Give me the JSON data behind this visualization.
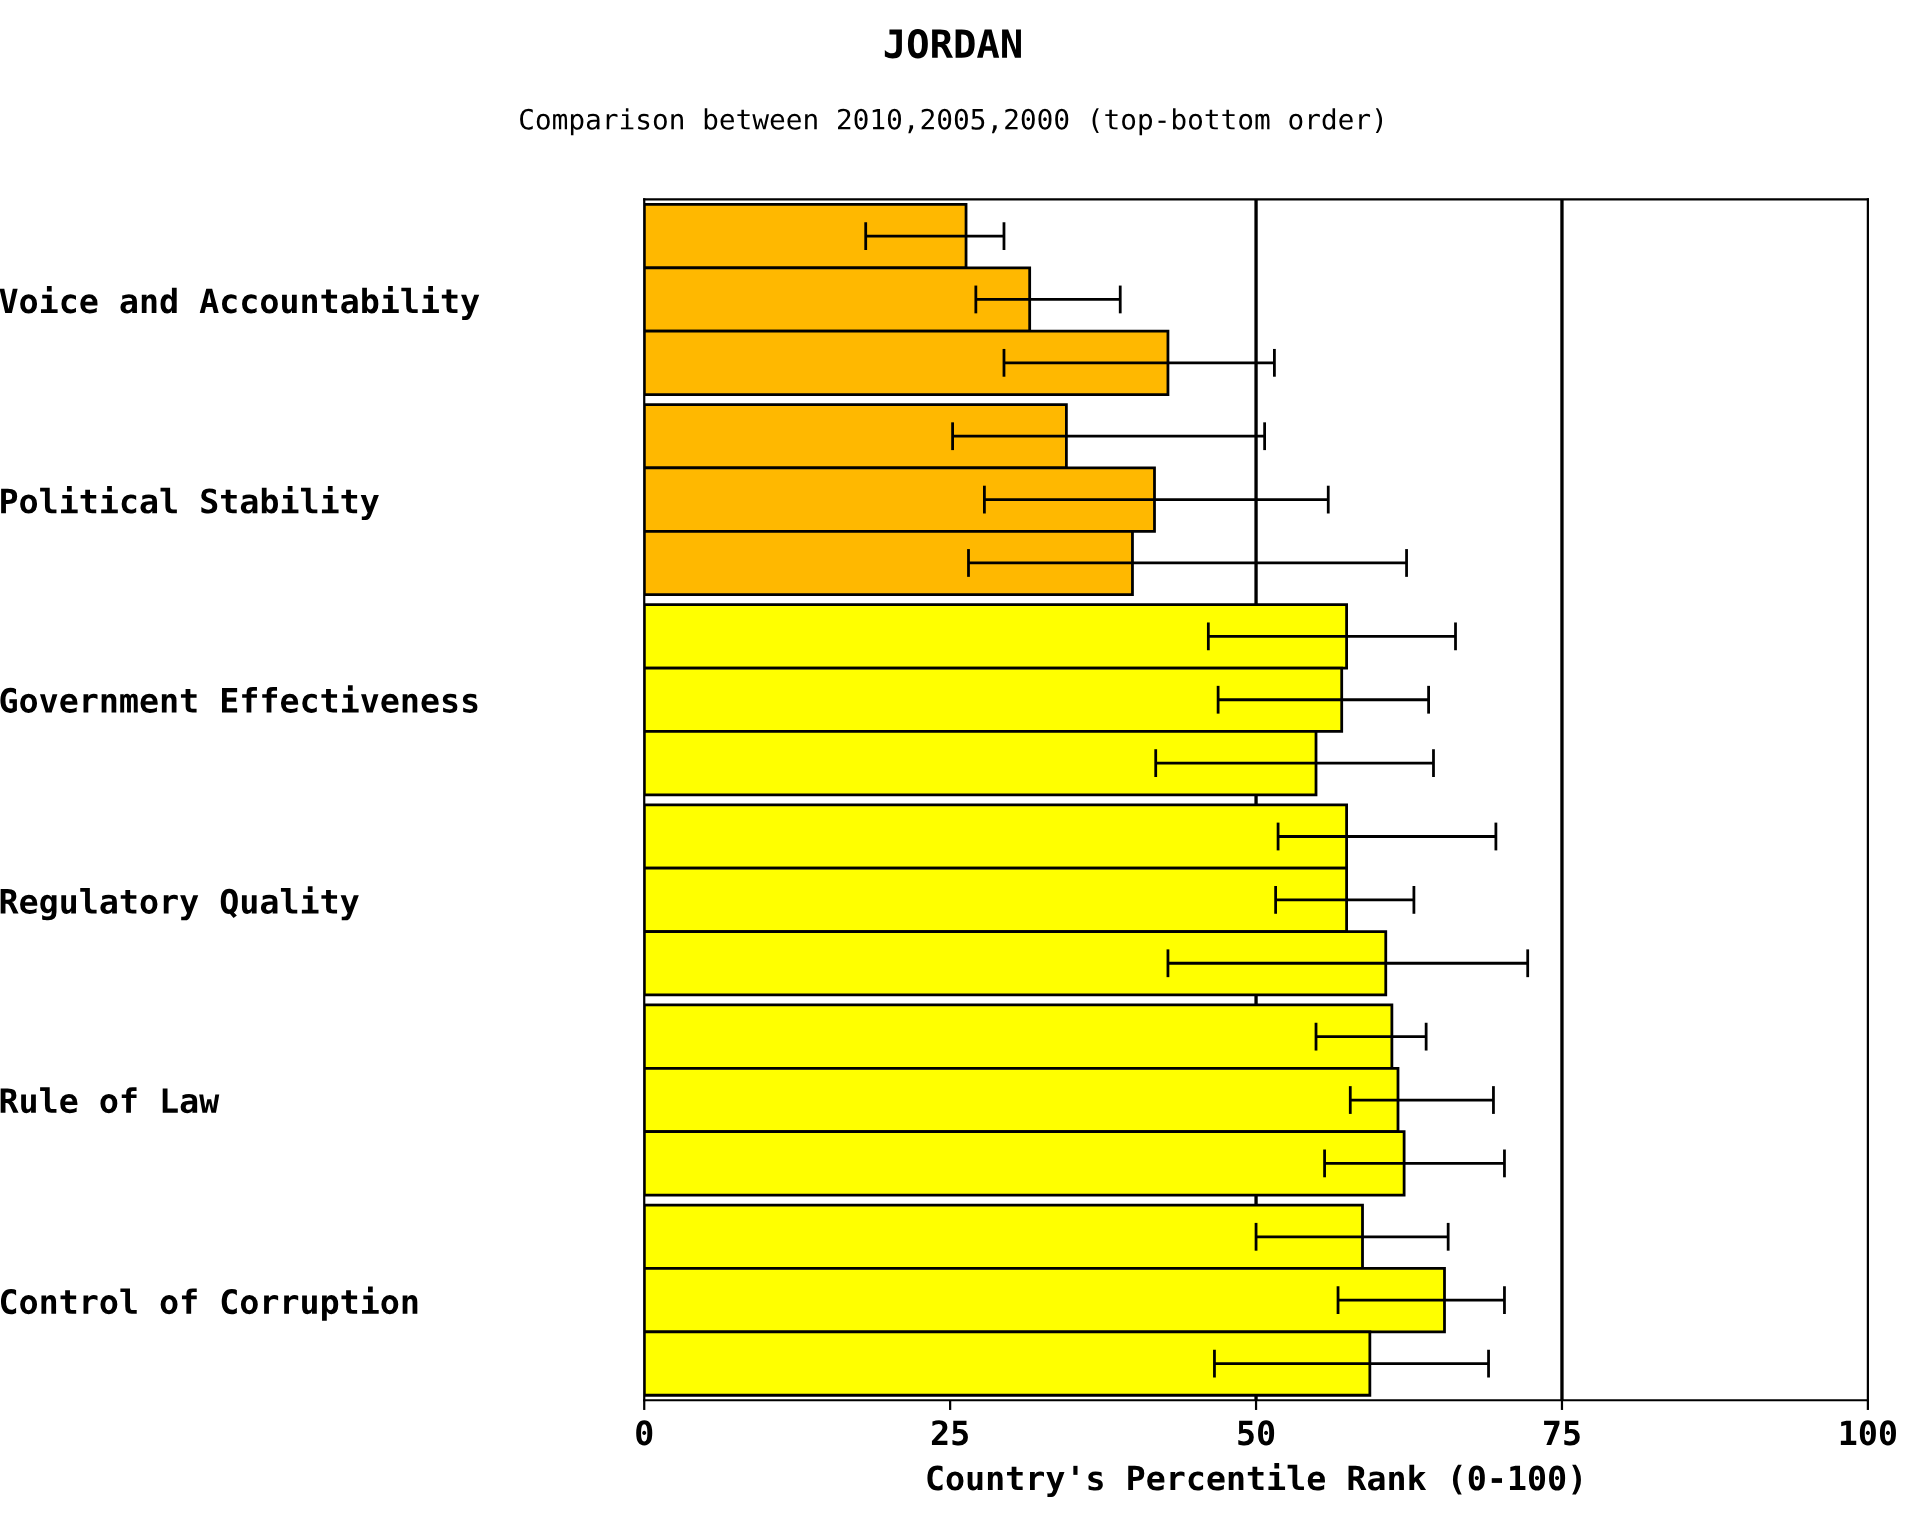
{
  "chart_data": {
    "type": "bar",
    "orientation": "horizontal",
    "title": "JORDAN",
    "subtitle": "Comparison between 2010,2005,2000 (top-bottom order)",
    "xlabel": "Country's Percentile Rank (0-100)",
    "categories": [
      "Voice and Accountability",
      "Political Stability",
      "Government Effectiveness",
      "Regulatory Quality",
      "Rule of Law",
      "Control of Corruption"
    ],
    "series": [
      {
        "colors": [
          "#ffb800",
          "#ffb800",
          "#ffff00",
          "#ffff00",
          "#ffff00",
          "#ffff00"
        ],
        "values": [
          26.3,
          34.5,
          57.4,
          57.4,
          61.1,
          58.7
        ],
        "errors": [
          [
            18.1,
            29.4
          ],
          [
            25.2,
            50.7
          ],
          [
            46.1,
            66.3
          ],
          [
            51.8,
            69.6
          ],
          [
            54.9,
            63.9
          ],
          [
            50.0,
            65.7
          ]
        ]
      },
      {
        "colors": [
          "#ffb800",
          "#ffb800",
          "#ffff00",
          "#ffff00",
          "#ffff00",
          "#ffff00"
        ],
        "values": [
          31.5,
          41.7,
          57.0,
          57.4,
          61.6,
          65.4
        ],
        "errors": [
          [
            27.1,
            38.9
          ],
          [
            27.8,
            55.9
          ],
          [
            46.9,
            64.1
          ],
          [
            51.6,
            62.9
          ],
          [
            57.7,
            69.4
          ],
          [
            56.7,
            70.3
          ]
        ]
      },
      {
        "colors": [
          "#ffb800",
          "#ffb800",
          "#ffff00",
          "#ffff00",
          "#ffff00",
          "#ffff00"
        ],
        "values": [
          42.8,
          39.9,
          54.9,
          60.6,
          62.1,
          59.3
        ],
        "errors": [
          [
            29.4,
            51.5
          ],
          [
            26.5,
            62.3
          ],
          [
            41.8,
            64.5
          ],
          [
            42.8,
            72.2
          ],
          [
            55.6,
            70.3
          ],
          [
            46.6,
            69.0
          ]
        ]
      }
    ],
    "xlim": [
      0,
      100
    ],
    "xticks": [
      0,
      25,
      50,
      75,
      100
    ],
    "ref_lines": [
      {
        "axis": "x",
        "value": 50,
        "color": "#000000"
      },
      {
        "axis": "x",
        "value": 75,
        "color": "#000000"
      }
    ]
  }
}
